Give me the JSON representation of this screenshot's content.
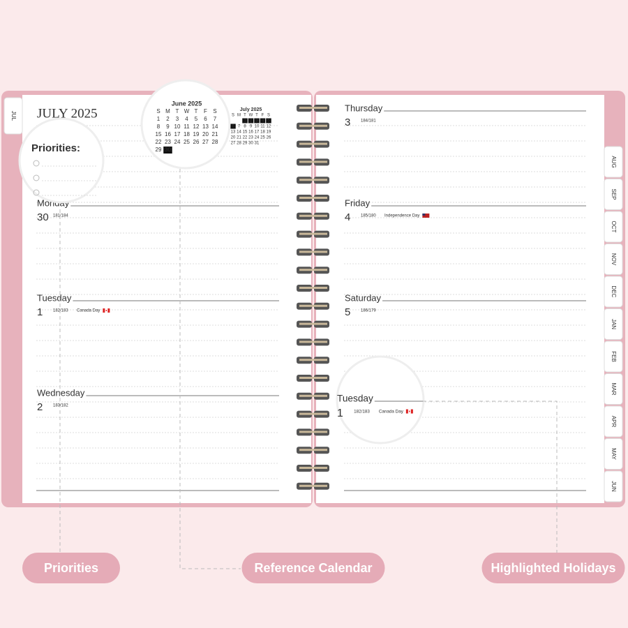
{
  "left_page": {
    "month_title": "JULY 2025",
    "priorities_title": "Priorities:",
    "days": [
      {
        "name": "Monday",
        "date": 30,
        "count": "181/184"
      },
      {
        "name": "Tuesday",
        "date": 1,
        "count": "182/183",
        "holiday": "Canada Day"
      },
      {
        "name": "Wednesday",
        "date": 2,
        "count": "183/182"
      }
    ]
  },
  "june_calendar": {
    "title": "June 2025",
    "weekdays": [
      "S",
      "M",
      "T",
      "W",
      "T",
      "F",
      "S"
    ],
    "weeks": [
      [
        1,
        2,
        3,
        4,
        5,
        6,
        7
      ],
      [
        8,
        9,
        10,
        11,
        12,
        13,
        14
      ],
      [
        15,
        16,
        17,
        18,
        19,
        20,
        21
      ],
      [
        22,
        23,
        24,
        25,
        26,
        27,
        28
      ],
      [
        29,
        30
      ]
    ]
  },
  "july_calendar": {
    "title": "July 2025",
    "weekdays": [
      "S",
      "M",
      "T",
      "W",
      "T",
      "F",
      "S"
    ],
    "weeks": [
      [
        1,
        2,
        3,
        4,
        5
      ],
      [
        6,
        7,
        8,
        9,
        10,
        11,
        12
      ],
      [
        13,
        14,
        15,
        16,
        17,
        18,
        19
      ],
      [
        20,
        21,
        22,
        23,
        24,
        25,
        26
      ],
      [
        27,
        28,
        29,
        30,
        31
      ]
    ]
  },
  "right_page": {
    "days": [
      {
        "name": "Thursday",
        "date": 3,
        "count": "184/181"
      },
      {
        "name": "Friday",
        "date": 4,
        "count": "185/180",
        "holiday": "Independence Day"
      },
      {
        "name": "Saturday",
        "date": 5,
        "count": "186/179"
      }
    ]
  },
  "magnifier": {
    "name": "Tuesday",
    "date": 1,
    "count": "182/183",
    "holiday": "Canada Day"
  },
  "tabs": {
    "left": "JUL",
    "right": [
      "AUG",
      "SEP",
      "OCT",
      "NOV",
      "DEC",
      "JAN",
      "FEB",
      "MAR",
      "APR",
      "MAY",
      "JUN"
    ]
  },
  "callouts": [
    "Priorities",
    "Reference Calendar",
    "Highlighted Holidays"
  ]
}
